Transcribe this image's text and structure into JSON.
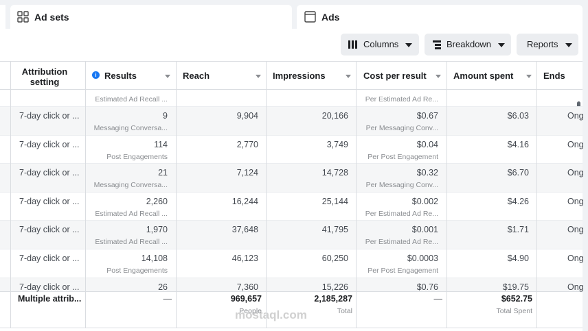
{
  "tabs": [
    "Ad sets",
    "Ads"
  ],
  "toolbar": [
    "Columns",
    "Breakdown",
    "Reports"
  ],
  "table": {
    "headers": [
      "Attribution setting",
      "Results",
      "Reach",
      "Impressions",
      "Cost per result",
      "Amount spent",
      "Ends"
    ],
    "partial_row": {
      "results_label": "Estimated Ad Recall ...",
      "cost_label": "Per Estimated Ad Re..."
    },
    "rows": [
      {
        "attribution": "7-day click or ...",
        "results": "9",
        "results_label": "Messaging Conversa...",
        "reach": "9,904",
        "impressions": "20,166",
        "cost": "$0.67",
        "cost_label": "Per Messaging Conv...",
        "spent": "$6.03",
        "ends": "Ong"
      },
      {
        "attribution": "7-day click or ...",
        "results": "114",
        "results_label": "Post Engagements",
        "reach": "2,770",
        "impressions": "3,749",
        "cost": "$0.04",
        "cost_label": "Per Post Engagement",
        "spent": "$4.16",
        "ends": "Ong"
      },
      {
        "attribution": "7-day click or ...",
        "results": "21",
        "results_label": "Messaging Conversa...",
        "reach": "7,124",
        "impressions": "14,728",
        "cost": "$0.32",
        "cost_label": "Per Messaging Conv...",
        "spent": "$6.70",
        "ends": "Ong"
      },
      {
        "attribution": "7-day click or ...",
        "results": "2,260",
        "results_label": "Estimated Ad Recall ...",
        "reach": "16,244",
        "impressions": "25,144",
        "cost": "$0.002",
        "cost_label": "Per Estimated Ad Re...",
        "spent": "$4.26",
        "ends": "Ong"
      },
      {
        "attribution": "7-day click or ...",
        "results": "1,970",
        "results_label": "Estimated Ad Recall ...",
        "reach": "37,648",
        "impressions": "41,795",
        "cost": "$0.001",
        "cost_label": "Per Estimated Ad Re...",
        "spent": "$1.71",
        "ends": "Ong"
      },
      {
        "attribution": "7-day click or ...",
        "results": "14,108",
        "results_label": "Post Engagements",
        "reach": "46,123",
        "impressions": "60,250",
        "cost": "$0.0003",
        "cost_label": "Per Post Engagement",
        "spent": "$4.90",
        "ends": "Ong"
      },
      {
        "attribution": "7-day click or ...",
        "results": "26",
        "reach": "7,360",
        "impressions": "15,226",
        "cost": "$0.76",
        "spent": "$19.75",
        "ends": "Ong"
      }
    ],
    "summary": {
      "attribution": "Multiple attrib...",
      "results": "—",
      "reach": "969,657",
      "reach_label": "People",
      "impressions": "2,185,287",
      "impressions_label": "Total",
      "cost": "—",
      "spent": "$652.75",
      "spent_label": "Total Spent"
    }
  },
  "watermark": "mostaql.com"
}
